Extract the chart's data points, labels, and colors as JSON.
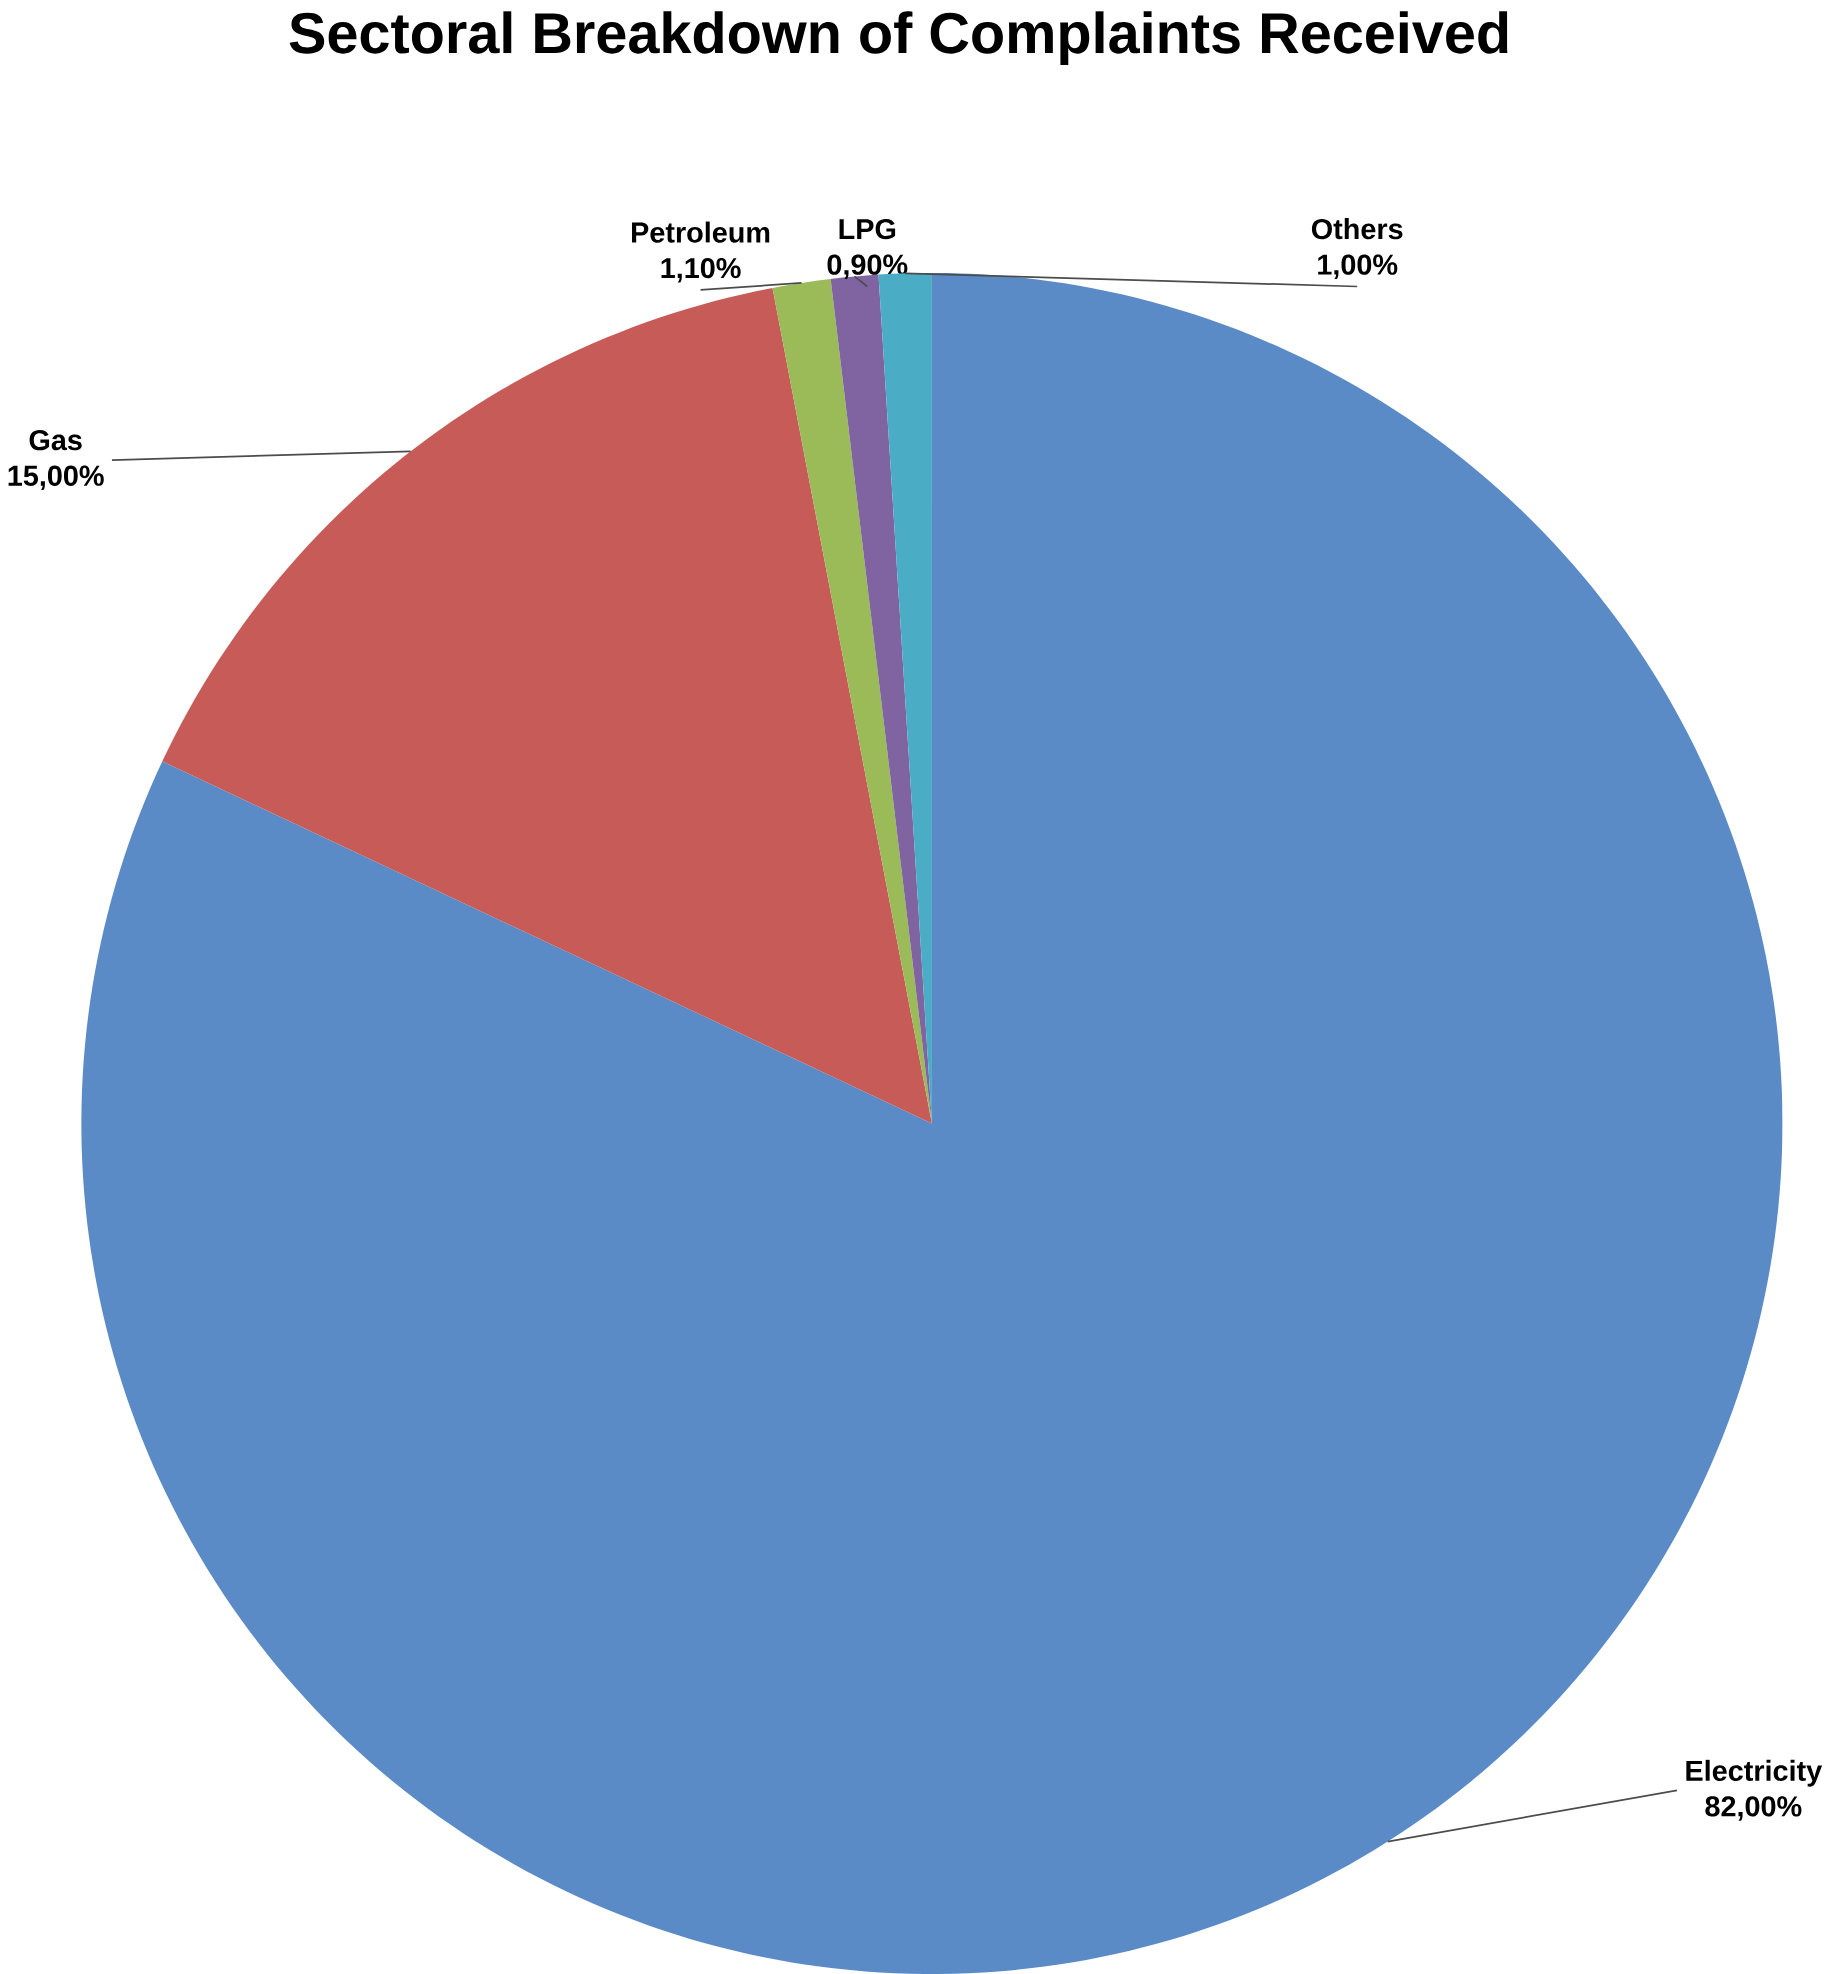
{
  "chart_data": {
    "type": "pie",
    "title": "Sectoral Breakdown of Complaints Received",
    "categories": [
      "Electricity",
      "Gas",
      "Petroleum",
      "LPG",
      "Others"
    ],
    "values": [
      82,
      15,
      1.1,
      0.9,
      1.0
    ],
    "colors": [
      "#5b8bc6",
      "#c65b57",
      "#9bbb59",
      "#8064a2",
      "#4bacc6"
    ],
    "value_labels": [
      "82,00%",
      "15,00%",
      "1,10%",
      "0,90%",
      "1,00%"
    ]
  }
}
